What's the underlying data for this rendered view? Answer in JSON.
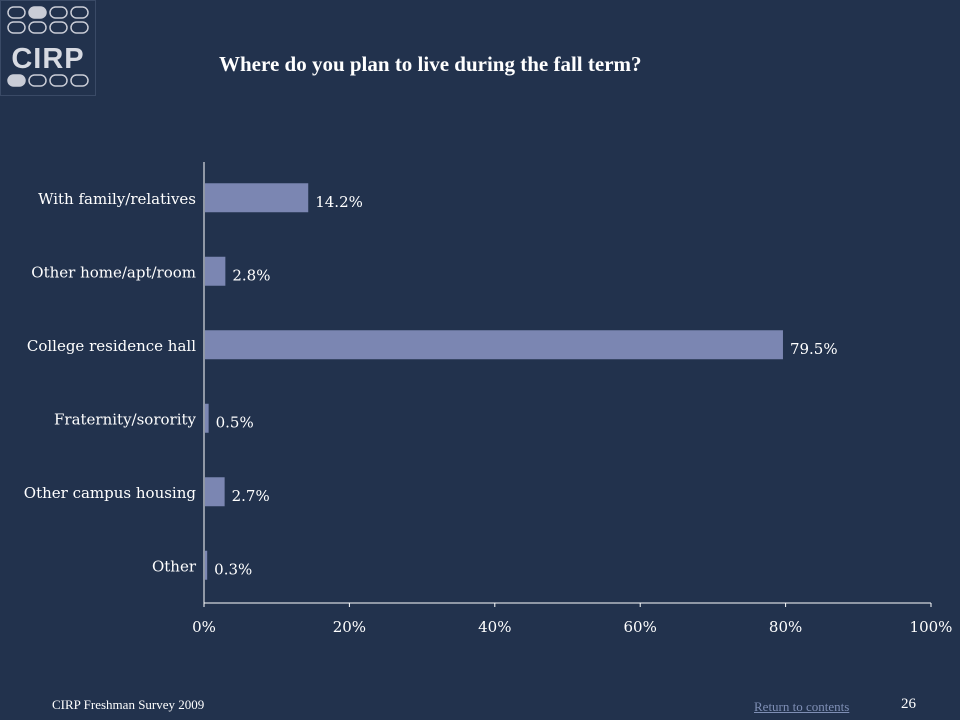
{
  "logo": {
    "text": "CIRP"
  },
  "colors": {
    "background": "#22324d",
    "bar": "#7b86b2",
    "axis": "#ffffff",
    "link": "#7f8fb5"
  },
  "chart_data": {
    "type": "bar",
    "orientation": "horizontal",
    "title": "Where do you plan to live during the fall term?",
    "categories": [
      "With family/relatives",
      "Other home/apt/room",
      "College residence hall",
      "Fraternity/sorority",
      "Other campus housing",
      "Other"
    ],
    "values": [
      14.2,
      2.8,
      79.5,
      0.5,
      2.7,
      0.3
    ],
    "value_labels": [
      "14.2%",
      "2.8%",
      "79.5%",
      "0.5%",
      "2.7%",
      "0.3%"
    ],
    "xlim": [
      0,
      100
    ],
    "xticks": [
      "0%",
      "20%",
      "40%",
      "60%",
      "80%",
      "100%"
    ],
    "grid": false,
    "legend": "none"
  },
  "footer": {
    "survey": "CIRP Freshman Survey 2009",
    "link": "Return to contents",
    "page": "26"
  }
}
